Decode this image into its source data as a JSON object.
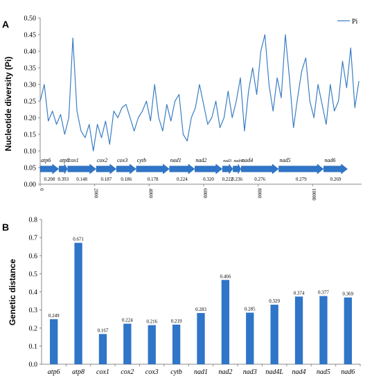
{
  "chart_data": [
    {
      "type": "line",
      "panel": "A",
      "ylabel": "Nucleotide diversity (Pi)",
      "ylim": [
        0,
        0.5
      ],
      "yticks": [
        "0.00",
        "0.05",
        "0.10",
        "0.15",
        "0.20",
        "0.25",
        "0.30",
        "0.35",
        "0.40",
        "0.45",
        "0.50"
      ],
      "xlim": [
        0,
        11800
      ],
      "xticks": [
        "0",
        "2000",
        "4000",
        "6000",
        "8000",
        "10000"
      ],
      "legend": {
        "position": "top-right",
        "label": "Pi"
      },
      "series": [
        {
          "name": "Pi",
          "color": "#3a7dc4",
          "x": [
            0,
            150,
            300,
            450,
            600,
            750,
            900,
            1050,
            1200,
            1350,
            1500,
            1650,
            1800,
            1950,
            2100,
            2250,
            2400,
            2550,
            2700,
            2850,
            3000,
            3150,
            3300,
            3450,
            3600,
            3750,
            3900,
            4050,
            4200,
            4350,
            4500,
            4650,
            4800,
            4950,
            5100,
            5250,
            5400,
            5550,
            5700,
            5850,
            6000,
            6150,
            6300,
            6450,
            6600,
            6750,
            6900,
            7050,
            7200,
            7350,
            7500,
            7650,
            7800,
            7950,
            8100,
            8250,
            8400,
            8550,
            8700,
            8850,
            9000,
            9150,
            9300,
            9450,
            9600,
            9750,
            9900,
            10050,
            10200,
            10350,
            10500,
            10650,
            10800,
            10950,
            11100,
            11250,
            11400,
            11550,
            11700
          ],
          "y": [
            0.25,
            0.3,
            0.19,
            0.22,
            0.18,
            0.21,
            0.15,
            0.2,
            0.44,
            0.22,
            0.16,
            0.14,
            0.18,
            0.1,
            0.18,
            0.14,
            0.19,
            0.12,
            0.22,
            0.2,
            0.23,
            0.24,
            0.2,
            0.16,
            0.2,
            0.22,
            0.25,
            0.19,
            0.3,
            0.2,
            0.16,
            0.24,
            0.19,
            0.25,
            0.27,
            0.15,
            0.13,
            0.2,
            0.23,
            0.3,
            0.24,
            0.18,
            0.2,
            0.25,
            0.17,
            0.2,
            0.28,
            0.2,
            0.25,
            0.32,
            0.16,
            0.28,
            0.35,
            0.27,
            0.4,
            0.45,
            0.3,
            0.22,
            0.32,
            0.26,
            0.45,
            0.32,
            0.17,
            0.26,
            0.34,
            0.38,
            0.25,
            0.2,
            0.3,
            0.24,
            0.18,
            0.3,
            0.22,
            0.25,
            0.37,
            0.29,
            0.41,
            0.23,
            0.31
          ]
        }
      ],
      "genes": [
        {
          "name": "atp6",
          "pi": "0.208",
          "start": 0,
          "end": 680
        },
        {
          "name": "atp8",
          "pi": "0.393",
          "start": 690,
          "end": 1000
        },
        {
          "name": "cox1",
          "pi": "0.148",
          "start": 1010,
          "end": 2050
        },
        {
          "name": "cox2",
          "pi": "0.187",
          "start": 2060,
          "end": 2790
        },
        {
          "name": "cox3",
          "pi": "0.186",
          "start": 2800,
          "end": 3520
        },
        {
          "name": "cytb",
          "pi": "0.178",
          "start": 3530,
          "end": 4740
        },
        {
          "name": "nad1",
          "pi": "0.224",
          "start": 4750,
          "end": 5670
        },
        {
          "name": "nad2",
          "pi": "0.320",
          "start": 5680,
          "end": 6680
        },
        {
          "name": "nad3",
          "pi": "0.222",
          "start": 6690,
          "end": 7070
        },
        {
          "name": "nad4L",
          "pi": "0.236",
          "start": 7080,
          "end": 7370
        },
        {
          "name": "nad4",
          "pi": "0.276",
          "start": 7380,
          "end": 8750
        },
        {
          "name": "nad5",
          "pi": "0.279",
          "start": 8760,
          "end": 10400
        },
        {
          "name": "nad6",
          "pi": "0.269",
          "start": 10410,
          "end": 11280
        }
      ]
    },
    {
      "type": "bar",
      "panel": "B",
      "ylabel": "Genetic distance",
      "ylim": [
        0,
        0.8
      ],
      "yticks": [
        "0.0",
        "0.1",
        "0.2",
        "0.3",
        "0.4",
        "0.5",
        "0.6",
        "0.7",
        "0.8"
      ],
      "categories": [
        "atp6",
        "atp8",
        "cox1",
        "cox2",
        "cox3",
        "cytb",
        "nad1",
        "nad2",
        "nad3",
        "nad4L",
        "nad4",
        "nad5",
        "nad6"
      ],
      "values": [
        0.249,
        0.671,
        0.167,
        0.224,
        0.216,
        0.219,
        0.283,
        0.466,
        0.285,
        0.329,
        0.374,
        0.377,
        0.369
      ],
      "labels": [
        "0.249",
        "0.671",
        "0.167",
        "0.224",
        "0.216",
        "0.219",
        "0.283",
        "0.466",
        "0.285",
        "0.329",
        "0.374",
        "0.377",
        "0.369"
      ],
      "color": "#2f75c8"
    }
  ]
}
